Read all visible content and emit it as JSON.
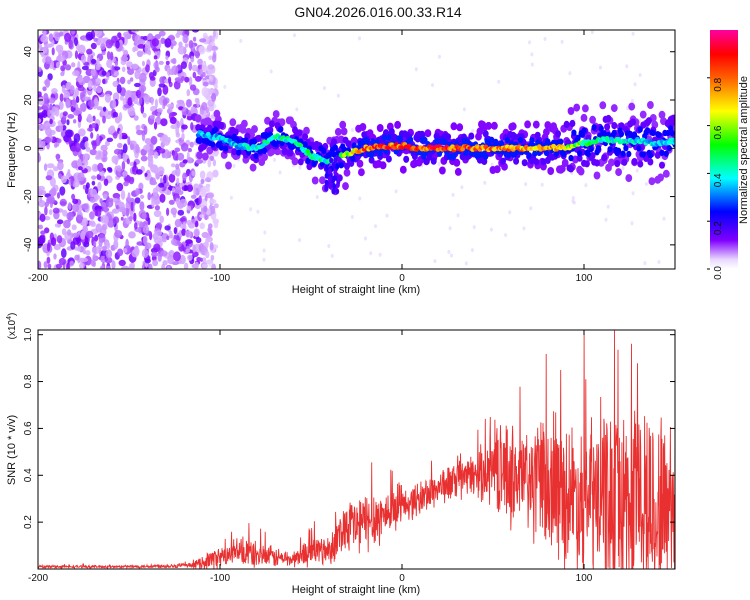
{
  "figure": {
    "title": "GN04.2026.016.00.33.R14"
  },
  "chart_data": [
    {
      "type": "heatmap",
      "title": "GN04.2026.016.00.33.R14",
      "xlabel": "Height of straight line (km)",
      "ylabel": "Frequency (Hz)",
      "xlim": [
        -200,
        150
      ],
      "ylim": [
        -50,
        49
      ],
      "xticks": [
        -200,
        -100,
        0,
        100
      ],
      "xtick_labels": [
        "-200",
        "-100",
        "0",
        "100"
      ],
      "yticks": [
        -40,
        -20,
        0,
        20,
        40
      ],
      "ytick_labels": [
        "-40",
        "-20",
        "0",
        "20",
        "40"
      ],
      "colorbar": {
        "label": "Normalized spectral amplitude",
        "range": [
          0,
          1
        ],
        "ticks": [
          0.0,
          0.2,
          0.4,
          0.6,
          0.8
        ],
        "tick_labels": [
          "0.0",
          "0.2",
          "0.4",
          "0.6",
          "0.8"
        ],
        "colormap": [
          "#f0e0ff",
          "#8000ff",
          "#0000ff",
          "#00ffff",
          "#00ff00",
          "#ffff00",
          "#ff8000",
          "#ff0000",
          "#ff0080"
        ]
      },
      "noise_region_km": [
        -200,
        -110
      ],
      "ridge": {
        "height_km": [
          -112,
          -100,
          -90,
          -80,
          -70,
          -60,
          -50,
          -40,
          -35,
          -30,
          -20,
          -10,
          0,
          10,
          20,
          40,
          60,
          80,
          95,
          100,
          110,
          120,
          130,
          140,
          150
        ],
        "frequency_hz": [
          6,
          4,
          1,
          0,
          5,
          3,
          -3,
          -6,
          -4,
          -2,
          0,
          1,
          1,
          0,
          0,
          0,
          0,
          0,
          1,
          2,
          4,
          3,
          3,
          2,
          3
        ],
        "peak_amplitude": [
          0.35,
          0.4,
          0.4,
          0.45,
          0.45,
          0.45,
          0.5,
          0.45,
          0.55,
          0.6,
          0.85,
          0.9,
          0.9,
          0.9,
          0.92,
          0.85,
          0.8,
          0.8,
          0.6,
          0.5,
          0.45,
          0.45,
          0.4,
          0.4,
          0.4
        ]
      }
    },
    {
      "type": "line",
      "title": "",
      "xlabel": "Height of straight line (km)",
      "ylabel": "SNR (10 * v/v)",
      "scale_label": "(x10^4)",
      "xlim": [
        -200,
        150
      ],
      "ylim": [
        0,
        1.02
      ],
      "xticks": [
        -200,
        -100,
        0,
        100
      ],
      "xtick_labels": [
        "-200",
        "-100",
        "0",
        "100"
      ],
      "yticks": [
        0.2,
        0.4,
        0.6,
        0.8,
        1.0
      ],
      "ytick_labels": [
        "0.2",
        "0.4",
        "0.6",
        "0.8",
        "1.0"
      ],
      "color": "#e83030",
      "series": [
        {
          "name": "SNR",
          "x": [
            -200,
            -150,
            -115,
            -105,
            -95,
            -85,
            -80,
            -70,
            -60,
            -50,
            -40,
            -30,
            -25,
            -20,
            -15,
            -10,
            0,
            10,
            20,
            40,
            50,
            60,
            80,
            100,
            110,
            120,
            130,
            140,
            150
          ],
          "mean": [
            0.01,
            0.01,
            0.015,
            0.04,
            0.06,
            0.07,
            0.06,
            0.05,
            0.04,
            0.08,
            0.08,
            0.2,
            0.18,
            0.2,
            0.22,
            0.23,
            0.27,
            0.3,
            0.35,
            0.4,
            0.43,
            0.4,
            0.35,
            0.3,
            0.3,
            0.28,
            0.28,
            0.25,
            0.3
          ],
          "spread": [
            0.005,
            0.005,
            0.01,
            0.04,
            0.04,
            0.06,
            0.05,
            0.04,
            0.03,
            0.06,
            0.06,
            0.1,
            0.12,
            0.12,
            0.12,
            0.1,
            0.06,
            0.07,
            0.07,
            0.08,
            0.15,
            0.2,
            0.25,
            0.3,
            0.35,
            0.4,
            0.38,
            0.38,
            0.38
          ]
        }
      ]
    }
  ]
}
